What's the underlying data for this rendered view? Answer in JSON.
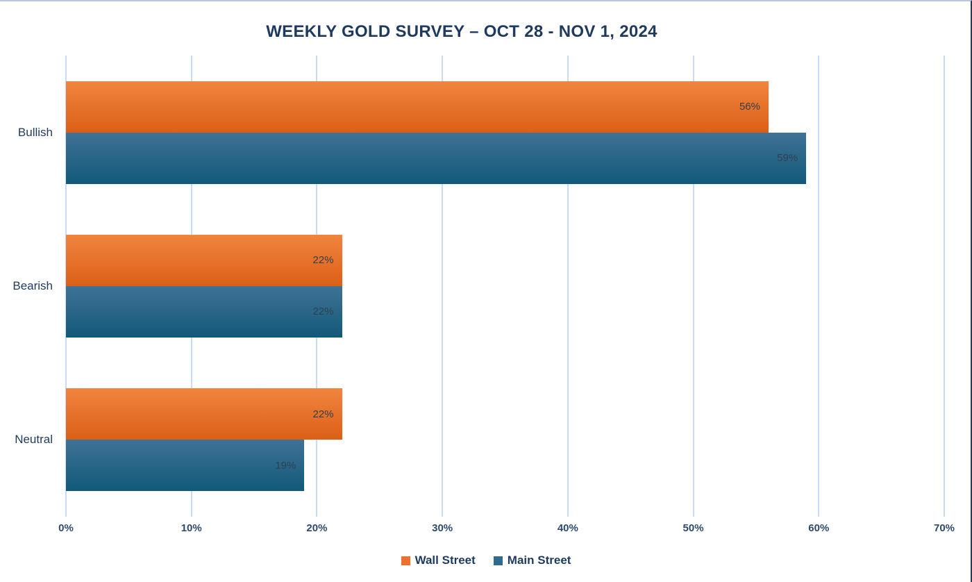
{
  "page": {
    "background": "#FFFFFF",
    "top_border_color": "#B6C8E0",
    "right_border_color": "#233B54"
  },
  "chart_data": {
    "type": "bar",
    "orientation": "horizontal",
    "title": "WEEKLY GOLD SURVEY – OCT 28 - NOV 1, 2024",
    "title_color": "#1E3A5F",
    "categories": [
      "Bullish",
      "Bearish",
      "Neutral"
    ],
    "series": [
      {
        "name": "Wall Street",
        "values": [
          56,
          22,
          22
        ],
        "gradient_top": "#F0853E",
        "gradient_bottom": "#DC5F17",
        "legend_color": "#ED7230"
      },
      {
        "name": "Main Street",
        "values": [
          59,
          22,
          19
        ],
        "gradient_top": "#3F7296",
        "gradient_bottom": "#125979",
        "legend_color": "#2E6B8F"
      }
    ],
    "value_suffix": "%",
    "xlim": [
      0,
      70
    ],
    "x_tick_labels": [
      "0%",
      "10%",
      "20%",
      "30%",
      "40%",
      "50%",
      "60%",
      "70%"
    ],
    "grid": true,
    "gridline_color": "#C9DBF4",
    "legend_position": "bottom",
    "axis_text_color": "#2C4A6E",
    "category_text_color": "#1F3A5C",
    "value_text_color": "#31404E"
  }
}
